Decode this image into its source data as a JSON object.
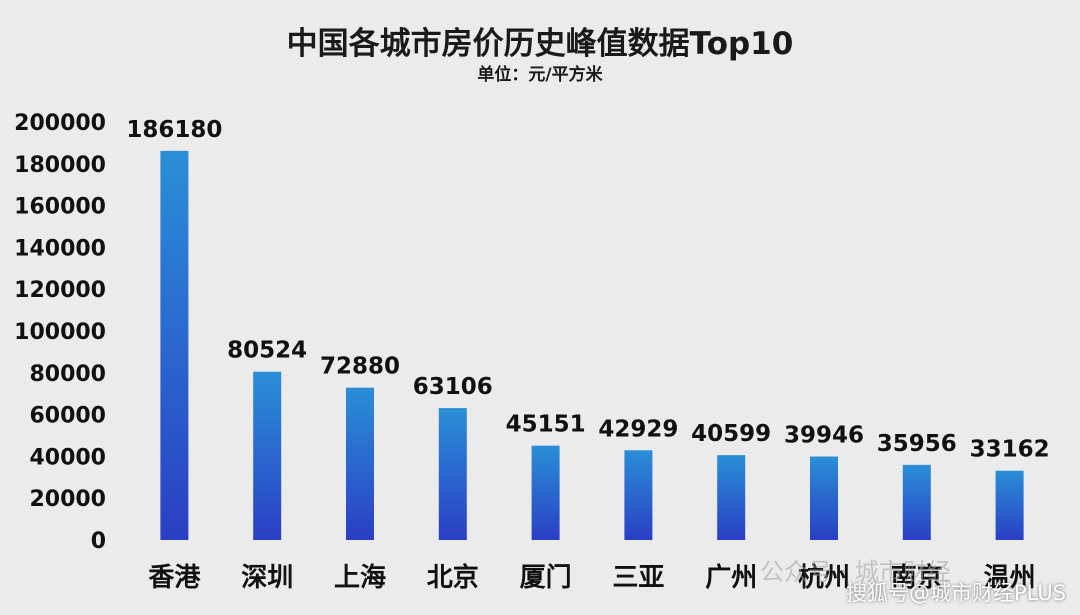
{
  "chart_data": {
    "type": "bar",
    "title": "中国各城市房价历史峰值数据Top10",
    "subtitle": "单位：元/平方米",
    "categories": [
      "香港",
      "深圳",
      "上海",
      "北京",
      "厦门",
      "三亚",
      "广州",
      "杭州",
      "南京",
      "温州"
    ],
    "values": [
      186180,
      80524,
      72880,
      63106,
      45151,
      42929,
      40599,
      39946,
      35956,
      33162
    ],
    "ylim": [
      0,
      200000
    ],
    "yticks": [
      0,
      20000,
      40000,
      60000,
      80000,
      100000,
      120000,
      140000,
      160000,
      180000,
      200000
    ],
    "grid": false,
    "data_labels": true,
    "colors": {
      "bar_top": "#2a8fd8",
      "bar_bottom": "#2a3fc4",
      "background": "#ebebeb"
    }
  },
  "watermarks": {
    "wechat": "公众号 · 城市财经",
    "sohu": "搜狐号@城市财经PLUS"
  }
}
